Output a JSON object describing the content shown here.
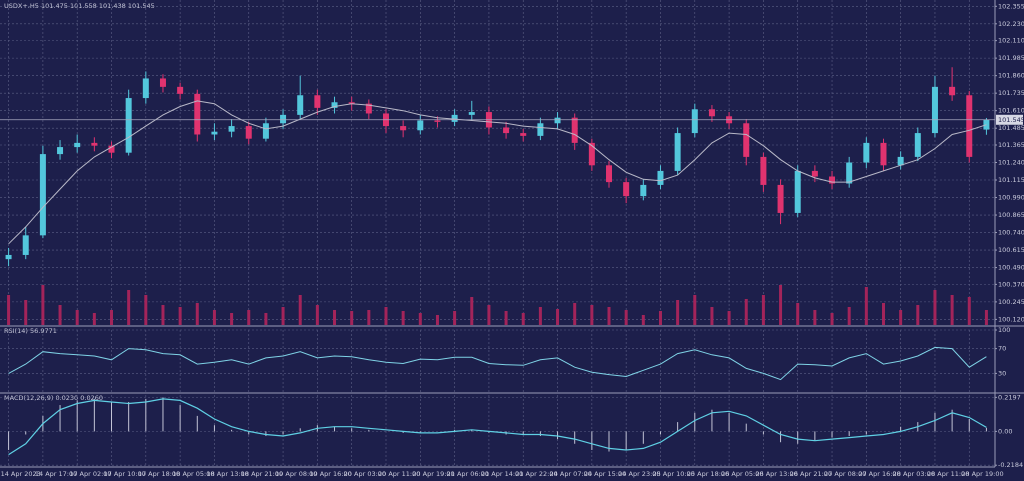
{
  "chart_data": [
    {
      "type": "candlestick",
      "symbol": "USDX+.H5",
      "categories": [
        "14 Apr 2023",
        null,
        "14 Apr 17:00",
        null,
        "17 Apr 02:00",
        null,
        "17 Apr 10:00",
        null,
        "17 Apr 18:00",
        null,
        "18 Apr 05:00",
        null,
        "18 Apr 13:00",
        null,
        "18 Apr 21:00",
        null,
        "19 Apr 08:00",
        null,
        "19 Apr 16:00",
        null,
        "20 Apr 03:00",
        null,
        "20 Apr 11:00",
        null,
        "20 Apr 19:00",
        null,
        "21 Apr 06:00",
        null,
        "21 Apr 14:00",
        null,
        "21 Apr 22:00",
        null,
        "24 Apr 07:00",
        null,
        "24 Apr 15:00",
        null,
        "24 Apr 23:00",
        null,
        "25 Apr 10:00",
        null,
        "25 Apr 18:00",
        null,
        "26 Apr 05:00",
        null,
        "26 Apr 13:00",
        null,
        "26 Apr 21:00",
        null,
        "27 Apr 08:00",
        null,
        "27 Apr 16:00",
        null,
        "28 Apr 03:00",
        null,
        "28 Apr 11:00",
        null,
        "28 Apr 19:00",
        null
      ],
      "open": [
        100.55,
        100.58,
        100.72,
        101.3,
        101.35,
        101.38,
        101.36,
        101.31,
        101.7,
        101.84,
        101.78,
        101.73,
        101.44,
        101.46,
        101.5,
        101.41,
        101.52,
        101.58,
        101.72,
        101.63,
        101.67,
        101.66,
        101.59,
        101.5,
        101.47,
        101.54,
        101.53,
        101.58,
        101.6,
        101.49,
        101.45,
        101.43,
        101.52,
        101.56,
        101.38,
        101.22,
        101.1,
        101.0,
        101.08,
        101.18,
        101.45,
        101.62,
        101.57,
        101.52,
        101.28,
        101.08,
        100.88,
        101.18,
        101.14,
        101.09,
        101.24,
        101.38,
        101.22,
        101.28,
        101.45,
        101.78,
        101.72,
        101.475
      ],
      "high": [
        100.63,
        100.78,
        101.36,
        101.4,
        101.44,
        101.42,
        101.39,
        101.76,
        101.89,
        101.87,
        101.81,
        101.76,
        101.52,
        101.55,
        101.53,
        101.56,
        101.62,
        101.86,
        101.76,
        101.71,
        101.71,
        101.69,
        101.62,
        101.54,
        101.58,
        101.57,
        101.62,
        101.68,
        101.64,
        101.53,
        101.48,
        101.56,
        101.6,
        101.59,
        101.41,
        101.25,
        101.13,
        101.12,
        101.22,
        101.49,
        101.66,
        101.65,
        101.6,
        101.55,
        101.31,
        101.12,
        101.22,
        101.22,
        101.18,
        101.28,
        101.42,
        101.41,
        101.32,
        101.49,
        101.86,
        101.92,
        101.75,
        101.558
      ],
      "low": [
        100.5,
        100.55,
        100.7,
        101.26,
        101.31,
        101.32,
        101.27,
        101.29,
        101.66,
        101.74,
        101.69,
        101.39,
        101.4,
        101.42,
        101.37,
        101.39,
        101.48,
        101.55,
        101.58,
        101.59,
        101.61,
        101.55,
        101.45,
        101.42,
        101.44,
        101.49,
        101.5,
        101.54,
        101.44,
        101.41,
        101.39,
        101.4,
        101.48,
        101.33,
        101.18,
        101.06,
        100.95,
        100.97,
        101.05,
        101.15,
        101.42,
        101.53,
        101.48,
        101.22,
        101.03,
        100.8,
        100.85,
        101.1,
        101.05,
        101.06,
        101.2,
        101.18,
        101.19,
        101.25,
        101.42,
        101.68,
        101.24,
        101.438
      ],
      "close": [
        100.58,
        100.72,
        101.3,
        101.35,
        101.38,
        101.36,
        101.31,
        101.7,
        101.84,
        101.78,
        101.73,
        101.44,
        101.46,
        101.5,
        101.41,
        101.52,
        101.58,
        101.72,
        101.63,
        101.67,
        101.66,
        101.59,
        101.5,
        101.47,
        101.54,
        101.53,
        101.58,
        101.6,
        101.49,
        101.45,
        101.43,
        101.52,
        101.56,
        101.38,
        101.22,
        101.1,
        101.0,
        101.08,
        101.18,
        101.45,
        101.62,
        101.57,
        101.52,
        101.28,
        101.08,
        100.88,
        101.18,
        101.14,
        101.09,
        101.24,
        101.38,
        101.22,
        101.28,
        101.45,
        101.78,
        101.72,
        101.28,
        101.545
      ],
      "up_color": "#53c7dc",
      "down_color": "#e0336f",
      "ma": {
        "color": "#b9b9c8",
        "values": [
          100.66,
          100.78,
          100.92,
          101.05,
          101.18,
          101.28,
          101.35,
          101.42,
          101.5,
          101.58,
          101.64,
          101.68,
          101.66,
          101.58,
          101.52,
          101.48,
          101.5,
          101.55,
          101.6,
          101.64,
          101.66,
          101.65,
          101.63,
          101.61,
          101.58,
          101.56,
          101.55,
          101.54,
          101.53,
          101.52,
          101.5,
          101.49,
          101.48,
          101.44,
          101.36,
          101.26,
          101.17,
          101.12,
          101.11,
          101.15,
          101.26,
          101.38,
          101.45,
          101.44,
          101.36,
          101.26,
          101.18,
          101.13,
          101.1,
          101.1,
          101.14,
          101.18,
          101.22,
          101.26,
          101.34,
          101.44,
          101.47,
          101.51
        ]
      },
      "volume": {
        "color": "#a3245a",
        "values": [
          30,
          25,
          40,
          20,
          15,
          12,
          15,
          35,
          30,
          20,
          18,
          22,
          15,
          12,
          15,
          12,
          18,
          30,
          20,
          15,
          14,
          15,
          18,
          14,
          12,
          10,
          14,
          28,
          20,
          14,
          12,
          18,
          16,
          22,
          20,
          18,
          15,
          10,
          14,
          25,
          30,
          18,
          14,
          26,
          30,
          40,
          22,
          15,
          12,
          18,
          38,
          22,
          15,
          20,
          35,
          30,
          28,
          15
        ]
      },
      "ylim": [
        100.08,
        102.4
      ],
      "yticks": [
        102.355,
        {
          "value": 102.23,
          "label": "102.230"
        },
        {
          "value": 102.11,
          "label": "102.110"
        },
        101.985,
        {
          "value": 101.86,
          "label": "101.860"
        },
        101.735,
        {
          "value": 101.61,
          "label": "101.610"
        },
        101.485,
        101.365,
        {
          "value": 101.24,
          "label": "101.240"
        },
        101.115,
        {
          "value": 100.99,
          "label": "100.990"
        },
        100.865,
        {
          "value": 100.74,
          "label": "100.740"
        },
        100.615,
        {
          "value": 100.49,
          "label": "100.490"
        },
        {
          "value": 100.37,
          "label": "100.370"
        },
        100.245,
        {
          "value": 100.12,
          "label": "100.120"
        }
      ],
      "grid": true
    },
    {
      "type": "line",
      "title": "RSI(14)",
      "color": "#7fd3e6",
      "values": [
        30,
        45,
        65,
        62,
        60,
        58,
        52,
        70,
        68,
        62,
        60,
        45,
        48,
        52,
        45,
        55,
        58,
        65,
        55,
        58,
        57,
        52,
        48,
        46,
        53,
        52,
        56,
        56,
        46,
        44,
        43,
        52,
        55,
        40,
        32,
        28,
        25,
        35,
        45,
        62,
        68,
        60,
        55,
        38,
        30,
        20,
        45,
        44,
        42,
        55,
        62,
        45,
        50,
        58,
        72,
        70,
        40,
        56.9771
      ],
      "ylim": [
        0,
        100
      ],
      "yticks": [
        100,
        70,
        30
      ],
      "grid": true
    },
    {
      "type": "macd",
      "title": "MACD(12,26,9)",
      "header_values": [
        {
          "value": 0.023,
          "label": "0.0230"
        },
        {
          "value": 0.026,
          "label": "0.0260"
        }
      ],
      "histogram": {
        "color": "#c3c4d6",
        "values": [
          -0.12,
          -0.02,
          0.1,
          0.17,
          0.2,
          0.21,
          0.19,
          0.19,
          0.21,
          0.22,
          0.17,
          0.1,
          0.04,
          0.01,
          -0.02,
          -0.03,
          -0.02,
          0.02,
          0.04,
          0.03,
          0.02,
          0.01,
          0.0,
          -0.01,
          -0.01,
          0.0,
          0.01,
          0.01,
          -0.01,
          -0.02,
          -0.02,
          -0.03,
          -0.05,
          -0.08,
          -0.12,
          -0.13,
          -0.12,
          -0.08,
          -0.02,
          0.06,
          0.12,
          0.14,
          0.12,
          0.05,
          -0.02,
          -0.07,
          -0.08,
          -0.06,
          -0.04,
          -0.03,
          -0.02,
          0.0,
          0.03,
          0.06,
          0.12,
          0.14,
          0.08,
          0.023
        ]
      },
      "signal": {
        "color": "#5fd0e4",
        "values": [
          -0.15,
          -0.08,
          0.05,
          0.14,
          0.18,
          0.2,
          0.19,
          0.18,
          0.19,
          0.21,
          0.2,
          0.15,
          0.08,
          0.03,
          0.0,
          -0.02,
          -0.03,
          -0.01,
          0.02,
          0.03,
          0.03,
          0.02,
          0.01,
          0.0,
          -0.01,
          -0.01,
          0.0,
          0.01,
          0.0,
          -0.01,
          -0.02,
          -0.02,
          -0.03,
          -0.05,
          -0.08,
          -0.11,
          -0.12,
          -0.11,
          -0.07,
          0.0,
          0.07,
          0.12,
          0.13,
          0.1,
          0.04,
          -0.02,
          -0.05,
          -0.06,
          -0.05,
          -0.04,
          -0.03,
          -0.02,
          0.0,
          0.03,
          0.07,
          0.12,
          0.09,
          0.026
        ]
      },
      "ylim": [
        -0.23,
        0.235
      ],
      "yticks": [
        0.2197,
        {
          "value": 0,
          "label": "0.00"
        },
        -0.2184
      ],
      "grid": true
    }
  ]
}
